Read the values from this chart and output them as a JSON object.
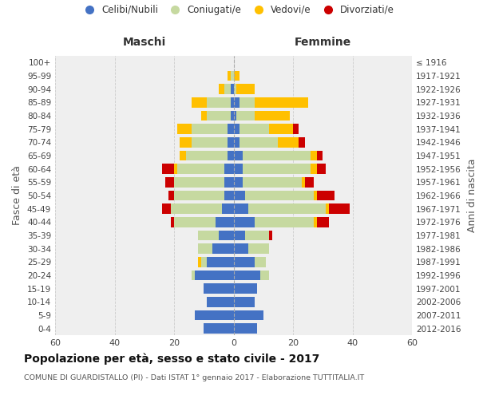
{
  "age_groups": [
    "0-4",
    "5-9",
    "10-14",
    "15-19",
    "20-24",
    "25-29",
    "30-34",
    "35-39",
    "40-44",
    "45-49",
    "50-54",
    "55-59",
    "60-64",
    "65-69",
    "70-74",
    "75-79",
    "80-84",
    "85-89",
    "90-94",
    "95-99",
    "100+"
  ],
  "birth_years": [
    "2012-2016",
    "2007-2011",
    "2002-2006",
    "1997-2001",
    "1992-1996",
    "1987-1991",
    "1982-1986",
    "1977-1981",
    "1972-1976",
    "1967-1971",
    "1962-1966",
    "1957-1961",
    "1952-1956",
    "1947-1951",
    "1942-1946",
    "1937-1941",
    "1932-1936",
    "1927-1931",
    "1922-1926",
    "1917-1921",
    "≤ 1916"
  ],
  "maschi": {
    "celibi": [
      10,
      13,
      9,
      10,
      13,
      9,
      7,
      5,
      6,
      4,
      3,
      3,
      3,
      2,
      2,
      2,
      1,
      1,
      1,
      0,
      0
    ],
    "coniugati": [
      0,
      0,
      0,
      0,
      1,
      2,
      5,
      7,
      14,
      17,
      17,
      17,
      16,
      14,
      12,
      12,
      8,
      8,
      2,
      1,
      0
    ],
    "vedovi": [
      0,
      0,
      0,
      0,
      0,
      1,
      0,
      0,
      0,
      0,
      0,
      0,
      1,
      2,
      4,
      5,
      2,
      5,
      2,
      1,
      0
    ],
    "divorziati": [
      0,
      0,
      0,
      0,
      0,
      0,
      0,
      0,
      1,
      3,
      2,
      3,
      4,
      0,
      0,
      0,
      0,
      0,
      0,
      0,
      0
    ]
  },
  "femmine": {
    "celibi": [
      8,
      10,
      7,
      8,
      9,
      7,
      5,
      4,
      7,
      5,
      4,
      3,
      3,
      3,
      2,
      2,
      1,
      2,
      0,
      0,
      0
    ],
    "coniugati": [
      0,
      0,
      0,
      0,
      3,
      4,
      7,
      8,
      20,
      26,
      23,
      20,
      23,
      23,
      13,
      10,
      6,
      5,
      1,
      0,
      0
    ],
    "vedovi": [
      0,
      0,
      0,
      0,
      0,
      0,
      0,
      0,
      1,
      1,
      1,
      1,
      2,
      2,
      7,
      8,
      12,
      18,
      6,
      2,
      0
    ],
    "divorziati": [
      0,
      0,
      0,
      0,
      0,
      0,
      0,
      1,
      4,
      7,
      6,
      3,
      3,
      2,
      2,
      2,
      0,
      0,
      0,
      0,
      0
    ]
  },
  "colors": {
    "celibi": "#4472c4",
    "coniugati": "#c6d9a0",
    "vedovi": "#ffc000",
    "divorziati": "#cc0000"
  },
  "legend_labels": [
    "Celibi/Nubili",
    "Coniugati/e",
    "Vedovi/e",
    "Divorziati/e"
  ],
  "xlim": 60,
  "title": "Popolazione per età, sesso e stato civile - 2017",
  "subtitle": "COMUNE DI GUARDISTALLO (PI) - Dati ISTAT 1° gennaio 2017 - Elaborazione TUTTITALIA.IT",
  "ylabel": "Fasce di età",
  "ylabel_right": "Anni di nascita",
  "xlabel_left": "Maschi",
  "xlabel_right": "Femmine",
  "background_color": "#efefef",
  "grid_color": "#cccccc"
}
